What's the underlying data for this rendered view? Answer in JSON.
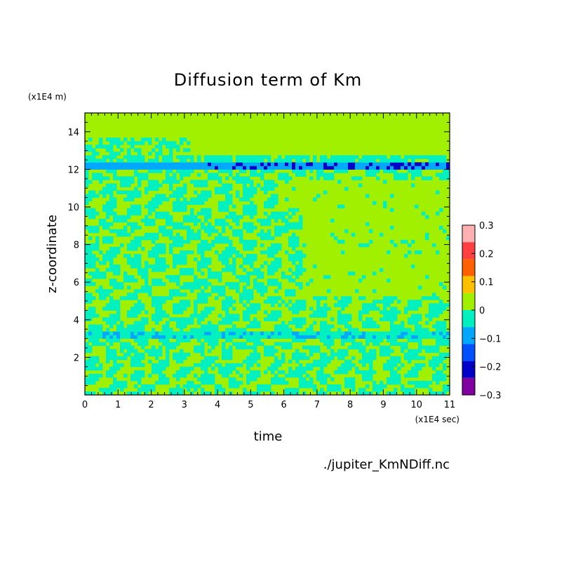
{
  "chart_data": {
    "type": "heatmap",
    "title": "Diffusion term of Km",
    "xlabel": "time",
    "ylabel": "z-coordinate",
    "x_unit": "(x1E4 sec)",
    "y_unit": "(x1E4 m)",
    "source": "./jupiter_KmNDiff.nc",
    "xlim": [
      0,
      11
    ],
    "ylim": [
      0,
      15
    ],
    "x_ticks": [
      "0",
      "1",
      "2",
      "3",
      "4",
      "5",
      "6",
      "7",
      "8",
      "9",
      "10",
      "11"
    ],
    "y_ticks": [
      "2",
      "4",
      "6",
      "8",
      "10",
      "12",
      "14"
    ],
    "colorbar": {
      "min": -0.3,
      "max": 0.3,
      "tick_labels": [
        "0.3",
        "0.2",
        "0.1",
        "0",
        "−0.1",
        "−0.2",
        "−0.3"
      ],
      "colors": [
        "#ffb0b0",
        "#ff4040",
        "#ff6000",
        "#ffc000",
        "#a0f000",
        "#00f0c0",
        "#00a8ff",
        "#0050ff",
        "#0000c8",
        "#8000a0"
      ]
    },
    "features": [
      {
        "description": "positive/zero background above z",
        "value": 0
      },
      {
        "description": "negative band near z=12.2",
        "value": -0.25
      },
      {
        "description": "negative band near z=3.2",
        "value": -0.1
      }
    ],
    "grid": false
  }
}
